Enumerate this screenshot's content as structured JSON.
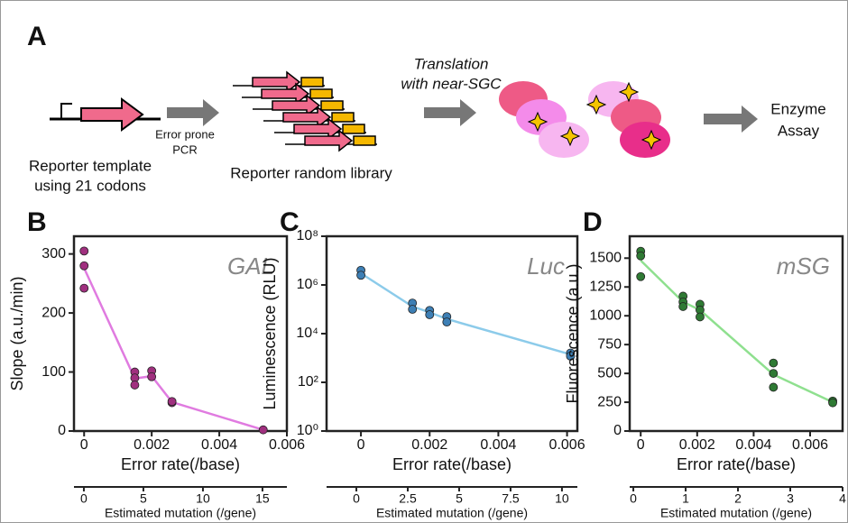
{
  "schematic": {
    "panel_label": "A",
    "template_label": [
      "Reporter template",
      "using 21 codons"
    ],
    "pcr_label": [
      "Error prone",
      "PCR"
    ],
    "library_label": "Reporter random library",
    "translation_label": [
      "Translation",
      "with near-SGC"
    ],
    "assay_label": [
      "Enzyme",
      "Assay"
    ]
  },
  "chart_data": [
    {
      "type": "line",
      "panel_label": "B",
      "annotation": "GAL",
      "xlabel": "Error rate(/base)",
      "ylabel": "Slope (a.u./min)",
      "x2label": "Estimated mutation (/gene)",
      "xlim": [
        -0.0003,
        0.006
      ],
      "xticks": [
        0,
        0.002,
        0.004,
        0.006
      ],
      "x2lim": [
        -0.83,
        17.05
      ],
      "x2ticks": [
        0,
        5,
        10,
        15
      ],
      "ylim": [
        0,
        330
      ],
      "yticks": [
        0,
        100,
        200,
        300
      ],
      "log_y": false,
      "line_color": "#e07be0",
      "point_color": "#a0307f",
      "points": {
        "x": [
          0,
          0,
          0,
          0.0015,
          0.0015,
          0.0015,
          0.002,
          0.002,
          0.0026,
          0.0026,
          0.0053
        ],
        "y": [
          305,
          280,
          242,
          100,
          90,
          78,
          102,
          92,
          48,
          50,
          2
        ]
      },
      "means": {
        "x": [
          0,
          0.0015,
          0.002,
          0.0026,
          0.0053
        ],
        "y": [
          276,
          89,
          93,
          49,
          2
        ]
      }
    },
    {
      "type": "line",
      "panel_label": "C",
      "annotation": "Luc",
      "xlabel": "Error rate(/base)",
      "ylabel": "Luminescence (RLU)",
      "x2label": "Estimated mutation (/gene)",
      "xlim": [
        -0.001,
        0.0063
      ],
      "xticks": [
        0,
        0.002,
        0.004,
        0.006
      ],
      "x2lim": [
        -1.45,
        10.75
      ],
      "x2ticks": [
        0,
        2.5,
        5,
        7.5,
        10
      ],
      "ylim": [
        1,
        100000000
      ],
      "yticks": [
        {
          "value": 1,
          "label": "10⁰"
        },
        {
          "value": 100,
          "label": "10²"
        },
        {
          "value": 10000,
          "label": "10⁴"
        },
        {
          "value": 1000000,
          "label": "10⁶"
        },
        {
          "value": 100000000,
          "label": "10⁸"
        }
      ],
      "log_y": true,
      "line_color": "#8ccbea",
      "point_color": "#3d7fb5",
      "points": {
        "x": [
          0,
          0,
          0.0015,
          0.0015,
          0.002,
          0.002,
          0.0025,
          0.0025,
          0.0061,
          0.0061
        ],
        "y": [
          4000000,
          2500000,
          180000,
          100000,
          90000,
          60000,
          50000,
          30000,
          1600,
          1200
        ]
      },
      "means": {
        "x": [
          0,
          0.0015,
          0.002,
          0.0025,
          0.0061
        ],
        "y": [
          3000000,
          130000,
          75000,
          40000,
          1400
        ]
      }
    },
    {
      "type": "line",
      "panel_label": "D",
      "annotation": "mSG",
      "xlabel": "Error rate(/base)",
      "ylabel": "Fluorescence (a.u.)",
      "x2label": "Estimated mutation (/gene)",
      "xlim": [
        -0.00039,
        0.00715
      ],
      "xticks": [
        0,
        0.002,
        0.004,
        0.006
      ],
      "x2lim": [
        -0.07,
        4.0
      ],
      "x2ticks": [
        0,
        1,
        2,
        3,
        4
      ],
      "ylim": [
        0,
        1690
      ],
      "yticks": [
        0,
        250,
        500,
        750,
        1000,
        1250,
        1500
      ],
      "log_y": false,
      "line_color": "#8fe08f",
      "point_color": "#2f7a34",
      "points": {
        "x": [
          0,
          0,
          0,
          0.0015,
          0.0015,
          0.0015,
          0.0021,
          0.0021,
          0.0021,
          0.0047,
          0.0047,
          0.0047,
          0.0068,
          0.0068
        ],
        "y": [
          1560,
          1520,
          1340,
          1170,
          1120,
          1080,
          1100,
          1050,
          990,
          590,
          500,
          380,
          260,
          245
        ]
      },
      "means": {
        "x": [
          0,
          0.0015,
          0.0021,
          0.0047,
          0.0068
        ],
        "y": [
          1480,
          1120,
          1050,
          490,
          250
        ]
      }
    }
  ]
}
